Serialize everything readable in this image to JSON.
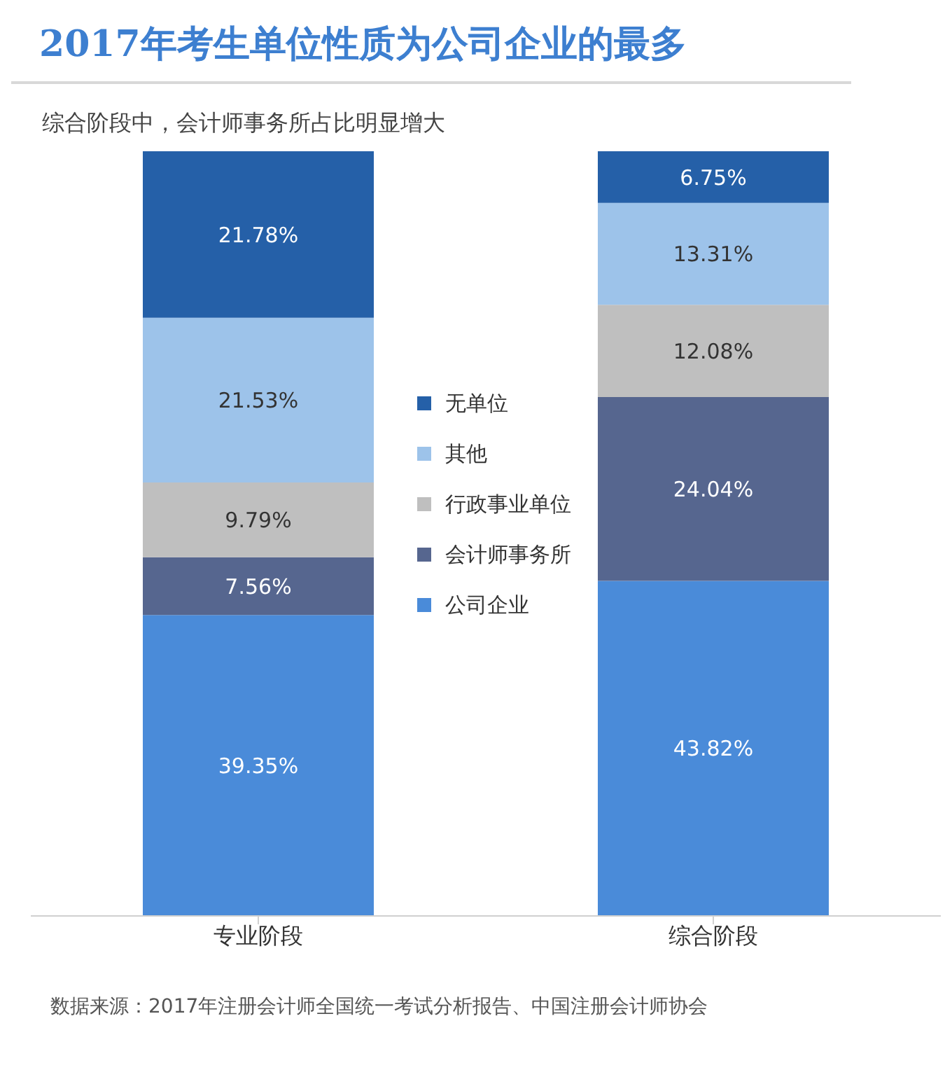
{
  "chart_data": {
    "type": "bar",
    "stacked": true,
    "title": "2017年考生单位性质为公司企业的最多",
    "subtitle": "综合阶段中，会计师事务所占比明显增大",
    "categories": [
      "专业阶段",
      "综合阶段"
    ],
    "series": [
      {
        "name": "公司企业",
        "color": "#4a8bd9",
        "values": [
          39.35,
          43.82
        ],
        "value_labels": [
          "39.35%",
          "43.82%"
        ]
      },
      {
        "name": "会计师事务所",
        "color": "#56668f",
        "values": [
          7.56,
          24.04
        ],
        "value_labels": [
          "7.56%",
          "24.04%"
        ]
      },
      {
        "name": "行政事业单位",
        "color": "#bfbfbf",
        "values": [
          9.79,
          12.08
        ],
        "value_labels": [
          "9.79%",
          "12.08%"
        ]
      },
      {
        "name": "其他",
        "color": "#9dc3ea",
        "values": [
          21.53,
          13.31
        ],
        "value_labels": [
          "21.53%",
          "13.31%"
        ]
      },
      {
        "name": "无单位",
        "color": "#2560a8",
        "values": [
          21.78,
          6.75
        ],
        "value_labels": [
          "21.78%",
          "6.75%"
        ]
      }
    ],
    "legend": "center",
    "grid": false,
    "annotations": [
      "数据来源：2017年注册会计师全国统一考试分析报告、中国注册会计师协会"
    ]
  }
}
